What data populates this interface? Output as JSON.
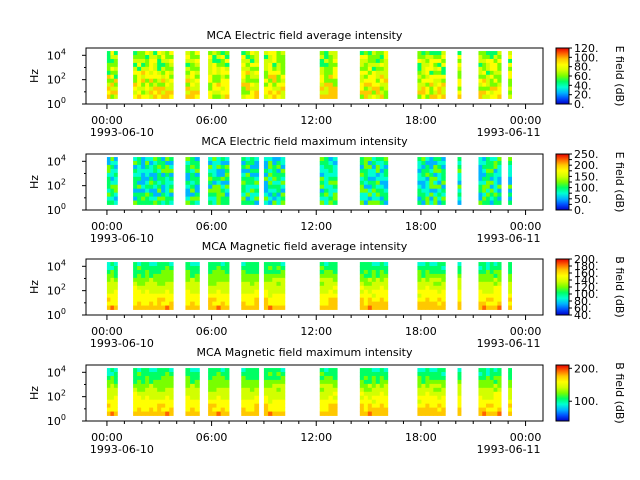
{
  "figure": {
    "colors": {
      "background": "#ffffff",
      "axis": "#000000",
      "gap": "#ffffff"
    },
    "colormap": [
      "#0000c8",
      "#0050ff",
      "#00b4ff",
      "#00ffd2",
      "#00ff64",
      "#78ff00",
      "#d2ff00",
      "#ffff00",
      "#ffc800",
      "#ff6400",
      "#e60000"
    ]
  },
  "chart_data": [
    {
      "type": "heatmap",
      "title": "MCA  Electric field average intensity",
      "xlabel": "",
      "ylabel": "Hz",
      "y_scale": "log",
      "ylim_exponent": [
        0,
        4.6
      ],
      "ytick_exponents": [
        0,
        2,
        4
      ],
      "ytick_labels": [
        "10",
        "10",
        "10"
      ],
      "ytick_sup": [
        "0",
        "2",
        "4"
      ],
      "xlim_hours": [
        -1.2,
        25.0
      ],
      "xtick_hours": [
        0,
        6,
        12,
        18,
        24
      ],
      "xtick_labels": [
        "00:00",
        "06:00",
        "12:00",
        "18:00",
        "00:00"
      ],
      "date_labels": [
        "1993-06-10",
        "1993-06-11"
      ],
      "colorbar": {
        "label": "E field (dB)",
        "range": [
          0,
          120
        ],
        "ticks": [
          0,
          20,
          40,
          60,
          80,
          100,
          120
        ],
        "tick_labels": [
          "0.",
          "20.",
          "40.",
          "60.",
          "80.",
          "100.",
          "120."
        ]
      },
      "data_intervals_hours": [
        [
          0,
          0.6
        ],
        [
          1.5,
          3.8
        ],
        [
          4.5,
          5.3
        ],
        [
          5.8,
          7.0
        ],
        [
          7.7,
          8.7
        ],
        [
          9.0,
          10.2
        ],
        [
          12.2,
          13.2
        ],
        [
          14.5,
          16.1
        ],
        [
          17.8,
          19.4
        ],
        [
          20.1,
          20.3
        ],
        [
          21.3,
          22.6
        ],
        [
          23.0,
          23.2
        ]
      ],
      "value_level_db": 75
    },
    {
      "type": "heatmap",
      "title": "MCA  Electric field maximum intensity",
      "xlabel": "",
      "ylabel": "Hz",
      "y_scale": "log",
      "ylim_exponent": [
        0,
        4.6
      ],
      "ytick_exponents": [
        0,
        2,
        4
      ],
      "ytick_labels": [
        "10",
        "10",
        "10"
      ],
      "ytick_sup": [
        "0",
        "2",
        "4"
      ],
      "xlim_hours": [
        -1.2,
        25.0
      ],
      "xtick_hours": [
        0,
        6,
        12,
        18,
        24
      ],
      "xtick_labels": [
        "00:00",
        "06:00",
        "12:00",
        "18:00",
        "00:00"
      ],
      "date_labels": [
        "1993-06-10",
        "1993-06-11"
      ],
      "colorbar": {
        "label": "E field (dB)",
        "range": [
          0,
          250
        ],
        "ticks": [
          0,
          25,
          50,
          75,
          100,
          125,
          150,
          175,
          200,
          225,
          250
        ],
        "tick_labels": [
          "0.",
          "",
          "50.",
          "",
          "100.",
          "",
          "150.",
          "",
          "200.",
          "",
          "250."
        ]
      },
      "data_intervals_hours": [
        [
          0,
          0.6
        ],
        [
          1.5,
          3.8
        ],
        [
          4.5,
          5.3
        ],
        [
          5.8,
          7.0
        ],
        [
          7.7,
          8.7
        ],
        [
          9.0,
          10.2
        ],
        [
          12.2,
          13.2
        ],
        [
          14.5,
          16.1
        ],
        [
          17.8,
          19.4
        ],
        [
          20.1,
          20.3
        ],
        [
          21.3,
          22.6
        ],
        [
          23.0,
          23.2
        ]
      ],
      "value_level_db": 110
    },
    {
      "type": "heatmap",
      "title": "MCA  Magnetic field average intensity",
      "xlabel": "",
      "ylabel": "Hz",
      "y_scale": "log",
      "ylim_exponent": [
        0,
        4.6
      ],
      "ytick_exponents": [
        0,
        2,
        4
      ],
      "ytick_labels": [
        "10",
        "10",
        "10"
      ],
      "ytick_sup": [
        "0",
        "2",
        "4"
      ],
      "xlim_hours": [
        -1.2,
        25.0
      ],
      "xtick_hours": [
        0,
        6,
        12,
        18,
        24
      ],
      "xtick_labels": [
        "00:00",
        "06:00",
        "12:00",
        "18:00",
        "00:00"
      ],
      "date_labels": [
        "1993-06-10",
        "1993-06-11"
      ],
      "colorbar": {
        "label": "B field (dB)",
        "range": [
          40,
          200
        ],
        "ticks": [
          40,
          60,
          80,
          100,
          120,
          140,
          160,
          180,
          200
        ],
        "tick_labels": [
          "40.",
          "60.",
          "80.",
          "100.",
          "120.",
          "140.",
          "160.",
          "180.",
          "200."
        ]
      },
      "data_intervals_hours": [
        [
          0,
          0.6
        ],
        [
          1.5,
          3.8
        ],
        [
          4.5,
          5.3
        ],
        [
          5.8,
          7.0
        ],
        [
          7.7,
          8.7
        ],
        [
          9.0,
          10.2
        ],
        [
          12.2,
          13.2
        ],
        [
          14.5,
          16.1
        ],
        [
          17.8,
          19.4
        ],
        [
          20.1,
          20.3
        ],
        [
          21.3,
          22.6
        ],
        [
          23.0,
          23.2
        ]
      ],
      "value_level_db": 120
    },
    {
      "type": "heatmap",
      "title": "MCA  Magnetic field maximum intensity",
      "xlabel": "",
      "ylabel": "Hz",
      "y_scale": "log",
      "ylim_exponent": [
        0,
        4.6
      ],
      "ytick_exponents": [
        0,
        2,
        4
      ],
      "ytick_labels": [
        "10",
        "10",
        "10"
      ],
      "ytick_sup": [
        "0",
        "2",
        "4"
      ],
      "xlim_hours": [
        -1.2,
        25.0
      ],
      "xtick_hours": [
        0,
        6,
        12,
        18,
        24
      ],
      "xtick_labels": [
        "00:00",
        "06:00",
        "12:00",
        "18:00",
        "00:00"
      ],
      "date_labels": [
        "1993-06-10",
        "1993-06-11"
      ],
      "colorbar": {
        "label": "B field (dB)",
        "range": [
          40,
          210
        ],
        "ticks": [
          100,
          200
        ],
        "tick_labels": [
          "100.",
          "200."
        ]
      },
      "data_intervals_hours": [
        [
          0,
          0.6
        ],
        [
          1.5,
          3.8
        ],
        [
          4.5,
          5.3
        ],
        [
          5.8,
          7.0
        ],
        [
          7.7,
          8.7
        ],
        [
          9.0,
          10.2
        ],
        [
          12.2,
          13.2
        ],
        [
          14.5,
          16.1
        ],
        [
          17.8,
          19.4
        ],
        [
          20.1,
          20.3
        ],
        [
          21.3,
          22.6
        ],
        [
          23.0,
          23.2
        ]
      ],
      "value_level_db": 130
    }
  ]
}
